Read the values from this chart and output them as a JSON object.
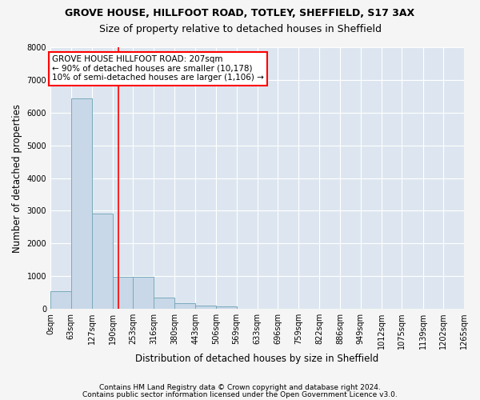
{
  "title1": "GROVE HOUSE, HILLFOOT ROAD, TOTLEY, SHEFFIELD, S17 3AX",
  "title2": "Size of property relative to detached houses in Sheffield",
  "xlabel": "Distribution of detached houses by size in Sheffield",
  "ylabel": "Number of detached properties",
  "bar_color": "#c8d8e8",
  "bar_edgecolor": "#7aaabb",
  "background_color": "#dde6f0",
  "grid_color": "#ffffff",
  "fig_facecolor": "#f5f5f5",
  "bins": [
    "0sqm",
    "63sqm",
    "127sqm",
    "190sqm",
    "253sqm",
    "316sqm",
    "380sqm",
    "443sqm",
    "506sqm",
    "569sqm",
    "633sqm",
    "696sqm",
    "759sqm",
    "822sqm",
    "886sqm",
    "949sqm",
    "1012sqm",
    "1075sqm",
    "1139sqm",
    "1202sqm",
    "1265sqm"
  ],
  "bin_edges": [
    0,
    63,
    127,
    190,
    253,
    316,
    380,
    443,
    506,
    569,
    633,
    696,
    759,
    822,
    886,
    949,
    1012,
    1075,
    1139,
    1202,
    1265
  ],
  "bar_heights": [
    540,
    6430,
    2920,
    990,
    990,
    340,
    165,
    105,
    75,
    0,
    0,
    0,
    0,
    0,
    0,
    0,
    0,
    0,
    0,
    0
  ],
  "ylim": [
    0,
    8000
  ],
  "yticks": [
    0,
    1000,
    2000,
    3000,
    4000,
    5000,
    6000,
    7000,
    8000
  ],
  "red_line_x": 207,
  "annotation_line1": "GROVE HOUSE HILLFOOT ROAD: 207sqm",
  "annotation_line2": "← 90% of detached houses are smaller (10,178)",
  "annotation_line3": "10% of semi-detached houses are larger (1,106) →",
  "footer1": "Contains HM Land Registry data © Crown copyright and database right 2024.",
  "footer2": "Contains public sector information licensed under the Open Government Licence v3.0.",
  "title1_fontsize": 9,
  "title2_fontsize": 9,
  "tick_fontsize": 7,
  "label_fontsize": 8.5,
  "annotation_fontsize": 7.5,
  "footer_fontsize": 6.5
}
